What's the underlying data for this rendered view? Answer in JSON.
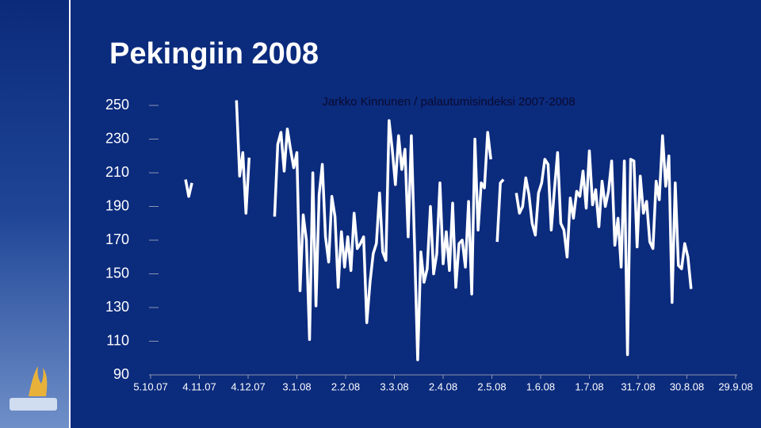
{
  "slide_title": "Pekingiin 2008",
  "chart_data": {
    "type": "line",
    "title": "Jarkko Kinnunen / palautumisindeksi 2007-2008",
    "xticks": [
      "5.10.07",
      "4.11.07",
      "4.12.07",
      "3.1.08",
      "2.2.08",
      "3.3.08",
      "2.4.08",
      "2.5.08",
      "1.6.08",
      "1.7.08",
      "31.7.08",
      "30.8.08",
      "29.9.08"
    ],
    "ylim": [
      90,
      250
    ],
    "yticks": [
      90,
      110,
      130,
      150,
      170,
      190,
      210,
      230,
      250
    ],
    "color": "#ffffff",
    "values": [
      null,
      null,
      null,
      null,
      null,
      null,
      null,
      null,
      null,
      null,
      null,
      206,
      196,
      204,
      null,
      null,
      null,
      null,
      null,
      null,
      null,
      null,
      null,
      null,
      null,
      null,
      null,
      253,
      208,
      222,
      186,
      219,
      null,
      null,
      null,
      null,
      null,
      null,
      null,
      184,
      227,
      234,
      211,
      236,
      224,
      213,
      222,
      140,
      185,
      170,
      111,
      210,
      131,
      197,
      215,
      172,
      157,
      196,
      184,
      142,
      175,
      154,
      172,
      152,
      186,
      165,
      168,
      172,
      121,
      145,
      162,
      168,
      198,
      163,
      158,
      241,
      224,
      203,
      232,
      212,
      224,
      172,
      232,
      168,
      99,
      163,
      145,
      153,
      190,
      150,
      162,
      204,
      156,
      175,
      152,
      192,
      142,
      168,
      170,
      154,
      193,
      138,
      230,
      176,
      204,
      201,
      234,
      218,
      null,
      169,
      204,
      206,
      null,
      null,
      null,
      198,
      186,
      190,
      207,
      197,
      180,
      173,
      198,
      204,
      218,
      215,
      176,
      200,
      222,
      180,
      176,
      160,
      195,
      183,
      199,
      196,
      211,
      189,
      223,
      191,
      200,
      178,
      205,
      190,
      199,
      217,
      167,
      183,
      154,
      217,
      102,
      218,
      217,
      166,
      208,
      186,
      193,
      169,
      165,
      205,
      194,
      232,
      202,
      220,
      133,
      204,
      155,
      153,
      168,
      160,
      141,
      null,
      null,
      null,
      null,
      null,
      null,
      null,
      null,
      null,
      null,
      null,
      null,
      null,
      null
    ]
  }
}
